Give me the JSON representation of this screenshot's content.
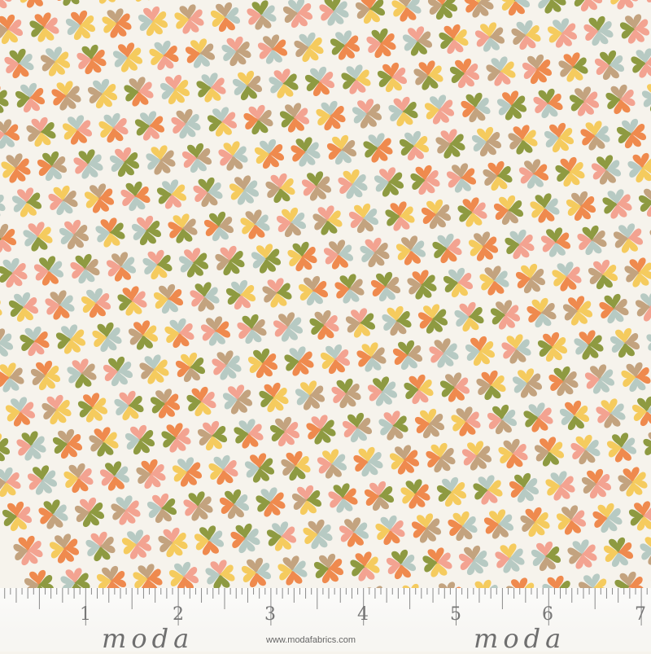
{
  "fabric": {
    "motif": "four-heart clover",
    "background_color": "#f6f3ec",
    "palette": [
      "#ef8a4e",
      "#f3a391",
      "#f5cb5e",
      "#8e9a41",
      "#c3a37f",
      "#b7cac3"
    ]
  },
  "ruler": {
    "unit_labels": [
      "1",
      "2",
      "3",
      "4",
      "5",
      "6",
      "7"
    ],
    "tick_color": "#8a8a8a"
  },
  "branding": {
    "logo_text": "moda",
    "website": "www.modafabrics.com"
  }
}
